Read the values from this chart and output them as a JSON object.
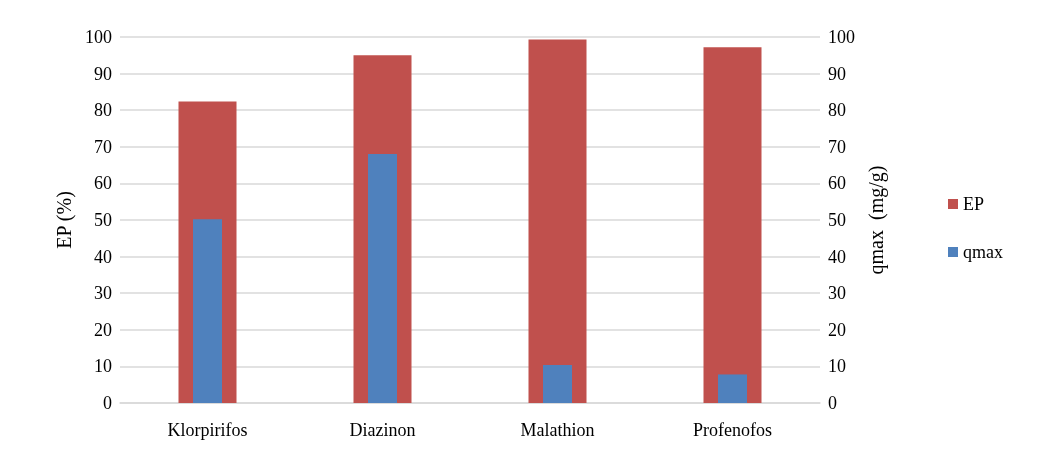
{
  "chart_data": {
    "type": "bar",
    "categories": [
      "Klorpirifos",
      "Diazinon",
      "Malathion",
      "Profenofos"
    ],
    "series": [
      {
        "name": "EP",
        "color": "#c0504d",
        "values": [
          82.4,
          95.0,
          99.3,
          97.2
        ]
      },
      {
        "name": "qmax",
        "color": "#4f81bd",
        "values": [
          50.2,
          68.0,
          10.4,
          7.8
        ],
        "axis": "y2"
      }
    ],
    "ylabel": "EP (%)",
    "y2label": "qmax  (mg/g)",
    "ylim": [
      0,
      100
    ],
    "yticks": [
      0,
      10,
      20,
      30,
      40,
      50,
      60,
      70,
      80,
      90,
      100
    ],
    "y2lim": [
      0,
      100
    ],
    "y2ticks": [
      0,
      10,
      20,
      30,
      40,
      50,
      60,
      70,
      80,
      90,
      100
    ],
    "grid": "y",
    "legend": "right"
  }
}
